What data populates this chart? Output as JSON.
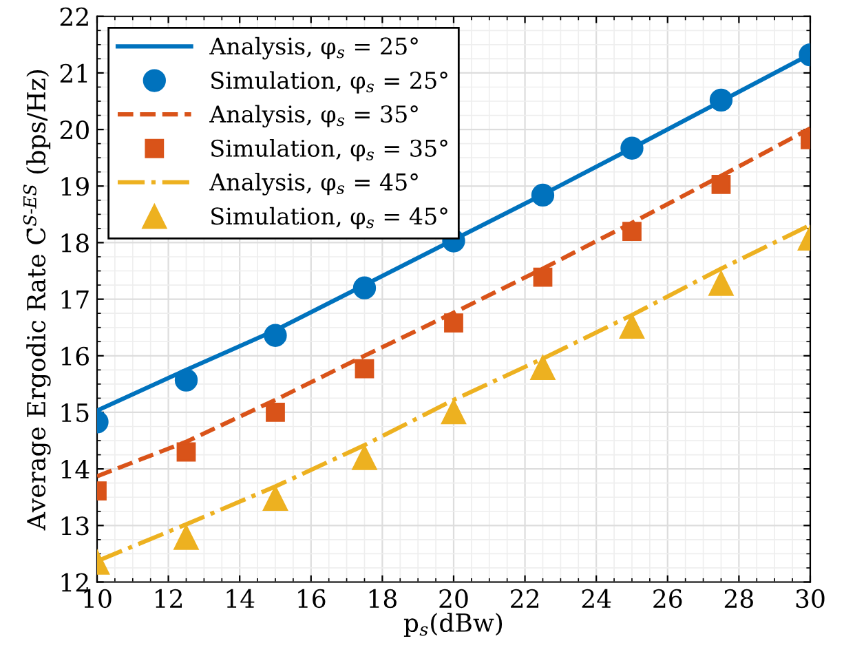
{
  "chart_data": {
    "type": "line",
    "xlabel": "p$_{s}$(dBw)",
    "ylabel": "Average Ergodic Rate C̄$^{S‐ES}$ (bps/Hz)",
    "x": [
      10,
      12.5,
      15,
      17.5,
      20,
      22.5,
      25,
      27.5,
      30
    ],
    "xlim": [
      10,
      30
    ],
    "xticks": [
      10,
      12,
      14,
      16,
      18,
      20,
      22,
      24,
      26,
      28,
      30
    ],
    "ylim": [
      12,
      22
    ],
    "yticks": [
      12,
      13,
      14,
      15,
      16,
      17,
      18,
      19,
      20,
      21,
      22
    ],
    "grid": true,
    "legend": "top left",
    "series": [
      {
        "name": "Analysis, φ$_{s}$ = 25°",
        "color": "#0072bd",
        "line_style": "solid",
        "marker": "none",
        "values": [
          15.03,
          15.75,
          16.45,
          17.25,
          18.05,
          18.85,
          19.67,
          20.5,
          21.33
        ]
      },
      {
        "name": "Simulation, φ$_{s}$ = 25°",
        "type": "scatter",
        "color": "#0072bd",
        "marker": "circle",
        "values": [
          14.83,
          15.57,
          16.36,
          17.2,
          18.03,
          18.84,
          19.67,
          20.52,
          21.32
        ]
      },
      {
        "name": "Analysis, φ$_{s}$ = 35°",
        "color": "#d95319",
        "line_style": "dashed",
        "marker": "none",
        "values": [
          13.87,
          14.48,
          15.22,
          16.0,
          16.76,
          17.54,
          18.35,
          19.18,
          20.02
        ]
      },
      {
        "name": "Simulation, φ$_{s}$ = 35°",
        "type": "scatter",
        "color": "#d95319",
        "marker": "square",
        "values": [
          13.61,
          14.3,
          15.0,
          15.77,
          16.58,
          17.39,
          18.2,
          19.03,
          19.82
        ]
      },
      {
        "name": "Analysis, φ$_{s}$ = 45°",
        "color": "#edb120",
        "line_style": "dashdot",
        "marker": "none",
        "values": [
          12.37,
          13.02,
          13.69,
          14.42,
          15.22,
          15.95,
          16.72,
          17.54,
          18.31
        ]
      },
      {
        "name": "Simulation, φ$_{s}$ = 45°",
        "type": "scatter",
        "color": "#edb120",
        "marker": "triangle",
        "values": [
          12.35,
          12.79,
          13.48,
          14.2,
          15.01,
          15.79,
          16.52,
          17.28,
          18.08
        ]
      }
    ]
  }
}
